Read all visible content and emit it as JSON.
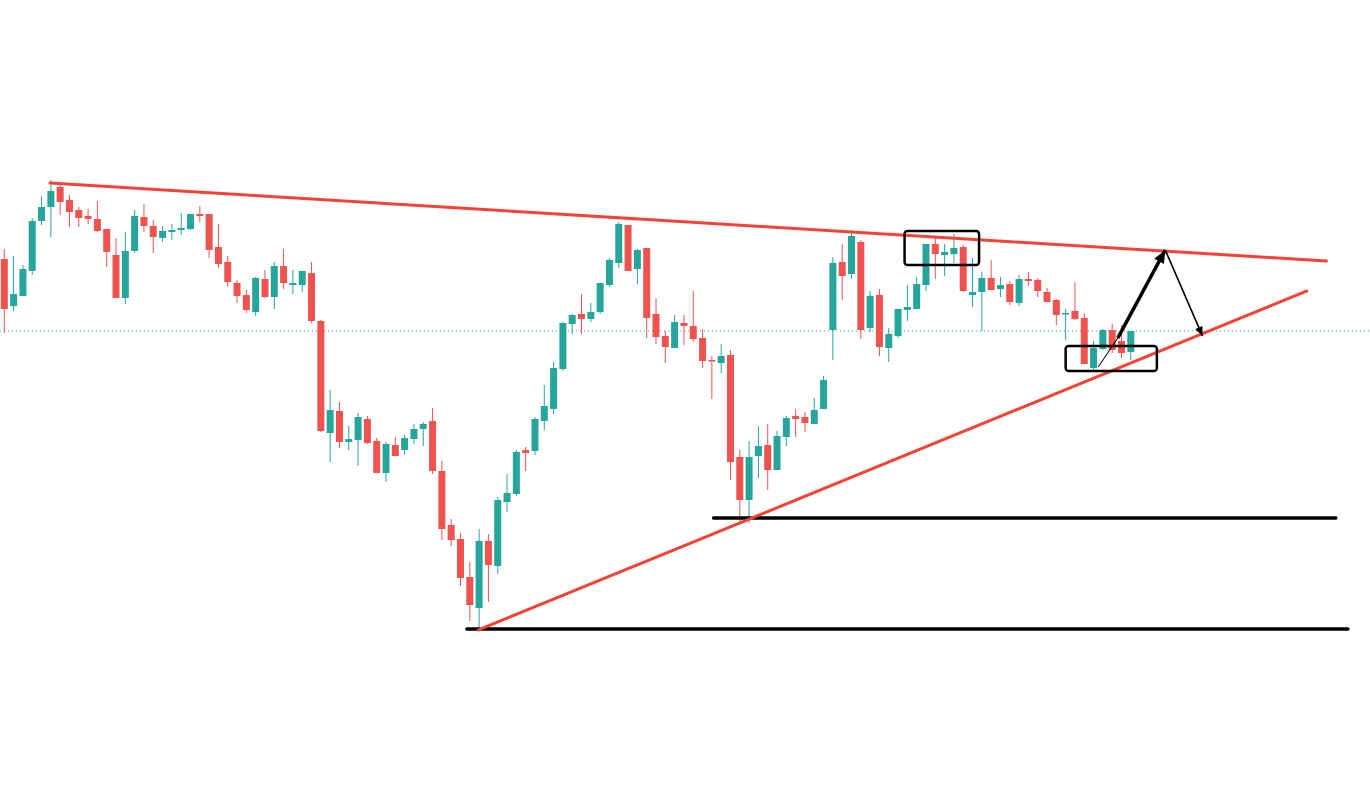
{
  "chart_data": {
    "type": "candlestick",
    "title": "",
    "xlabel": "",
    "ylabel": "",
    "grid": false,
    "ylim": [
      11,
      800
    ],
    "colors": {
      "up": "#26a69a",
      "down": "#ef5350",
      "trendline": "#f44336",
      "support": "#000000",
      "last_price_line": "#26a69a"
    },
    "candles_ohlc": [
      [
        541,
        551,
        467,
        491
      ],
      [
        494,
        544,
        489,
        506
      ],
      [
        504,
        535,
        504,
        531
      ],
      [
        529,
        582,
        525,
        579
      ],
      [
        579,
        604,
        575,
        593
      ],
      [
        593,
        620,
        563,
        609
      ],
      [
        613,
        617,
        585,
        598
      ],
      [
        600,
        605,
        573,
        588
      ],
      [
        590,
        593,
        573,
        582
      ],
      [
        584,
        591,
        576,
        581
      ],
      [
        581,
        599,
        568,
        569
      ],
      [
        571,
        571,
        533,
        548
      ],
      [
        545,
        562,
        502,
        502
      ],
      [
        502,
        568,
        496,
        549
      ],
      [
        549,
        590,
        547,
        584
      ],
      [
        583,
        596,
        568,
        574
      ],
      [
        574,
        580,
        547,
        563
      ],
      [
        562,
        574,
        558,
        569
      ],
      [
        568,
        576,
        560,
        570
      ],
      [
        570,
        587,
        565,
        572
      ],
      [
        571,
        586,
        570,
        586
      ],
      [
        586,
        594,
        578,
        584
      ],
      [
        586,
        586,
        542,
        550
      ],
      [
        553,
        576,
        532,
        536
      ],
      [
        538,
        544,
        513,
        518
      ],
      [
        517,
        520,
        497,
        504
      ],
      [
        505,
        510,
        487,
        490
      ],
      [
        488,
        523,
        484,
        522
      ],
      [
        521,
        530,
        502,
        503
      ],
      [
        503,
        538,
        491,
        534
      ],
      [
        534,
        551,
        511,
        517
      ],
      [
        515,
        530,
        506,
        517
      ],
      [
        515,
        529,
        508,
        529
      ],
      [
        527,
        538,
        477,
        479
      ],
      [
        479,
        480,
        368,
        369
      ],
      [
        367,
        410,
        338,
        390
      ],
      [
        389,
        398,
        352,
        358
      ],
      [
        358,
        374,
        350,
        361
      ],
      [
        360,
        387,
        334,
        383
      ],
      [
        381,
        384,
        356,
        357
      ],
      [
        359,
        362,
        327,
        327
      ],
      [
        327,
        358,
        318,
        356
      ],
      [
        355,
        363,
        344,
        344
      ],
      [
        350,
        365,
        345,
        362
      ],
      [
        361,
        376,
        356,
        371
      ],
      [
        371,
        378,
        354,
        376
      ],
      [
        379,
        392,
        326,
        329
      ],
      [
        329,
        339,
        260,
        271
      ],
      [
        275,
        281,
        254,
        260
      ],
      [
        261,
        267,
        214,
        222
      ],
      [
        223,
        238,
        179,
        195
      ],
      [
        192,
        271,
        170,
        259
      ],
      [
        259,
        266,
        198,
        235
      ],
      [
        234,
        303,
        226,
        300
      ],
      [
        298,
        326,
        288,
        307
      ],
      [
        306,
        350,
        304,
        348
      ],
      [
        350,
        353,
        329,
        347
      ],
      [
        349,
        383,
        345,
        381
      ],
      [
        379,
        415,
        370,
        394
      ],
      [
        391,
        438,
        386,
        432
      ],
      [
        431,
        478,
        429,
        477
      ],
      [
        476,
        486,
        466,
        485
      ],
      [
        486,
        506,
        466,
        481
      ],
      [
        481,
        497,
        478,
        488
      ],
      [
        488,
        517,
        486,
        517
      ],
      [
        515,
        542,
        513,
        540
      ],
      [
        537,
        578,
        532,
        576
      ],
      [
        575,
        575,
        529,
        529
      ],
      [
        531,
        551,
        516,
        550
      ],
      [
        552,
        552,
        462,
        482
      ],
      [
        486,
        502,
        456,
        463
      ],
      [
        464,
        469,
        437,
        453
      ],
      [
        452,
        485,
        452,
        478
      ],
      [
        477,
        485,
        455,
        474
      ],
      [
        474,
        509,
        458,
        461
      ],
      [
        462,
        471,
        432,
        439
      ],
      [
        440,
        444,
        401,
        439
      ],
      [
        437,
        456,
        427,
        444
      ],
      [
        445,
        450,
        320,
        338
      ],
      [
        343,
        350,
        278,
        300
      ],
      [
        300,
        359,
        277,
        343
      ],
      [
        344,
        374,
        322,
        354
      ],
      [
        355,
        376,
        310,
        330
      ],
      [
        330,
        369,
        330,
        364
      ],
      [
        363,
        384,
        354,
        382
      ],
      [
        384,
        391,
        363,
        381
      ],
      [
        383,
        388,
        368,
        377
      ],
      [
        376,
        402,
        376,
        390
      ],
      [
        391,
        424,
        391,
        420
      ],
      [
        470,
        543,
        440,
        537
      ],
      [
        538,
        556,
        500,
        524
      ],
      [
        526,
        570,
        521,
        564
      ],
      [
        558,
        560,
        461,
        470
      ],
      [
        472,
        509,
        468,
        504
      ],
      [
        505,
        511,
        444,
        453
      ],
      [
        452,
        472,
        438,
        466
      ],
      [
        464,
        491,
        462,
        491
      ],
      [
        490,
        515,
        479,
        493
      ],
      [
        491,
        523,
        491,
        516
      ],
      [
        515,
        556,
        509,
        556
      ],
      [
        556,
        563,
        521,
        546
      ],
      [
        545,
        556,
        524,
        548
      ],
      [
        546,
        566,
        537,
        552
      ],
      [
        553,
        555,
        508,
        509
      ],
      [
        505,
        542,
        493,
        508
      ],
      [
        508,
        528,
        469,
        522
      ],
      [
        522,
        540,
        510,
        510
      ],
      [
        511,
        523,
        503,
        515
      ],
      [
        516,
        519,
        495,
        498
      ],
      [
        497,
        525,
        494,
        521
      ],
      [
        521,
        528,
        514,
        519
      ],
      [
        520,
        522,
        503,
        509
      ],
      [
        508,
        512,
        498,
        498
      ],
      [
        500,
        501,
        475,
        485
      ],
      [
        486,
        491,
        460,
        487
      ],
      [
        489,
        518,
        480,
        481
      ],
      [
        482,
        487,
        436,
        436
      ],
      [
        432,
        459,
        430,
        452
      ],
      [
        451,
        471,
        450,
        470
      ],
      [
        470,
        476,
        447,
        450
      ],
      [
        459,
        475,
        442,
        447
      ],
      [
        448,
        469,
        440,
        469
      ]
    ],
    "last_price": 469,
    "drawings": {
      "trendlines": [
        {
          "name": "upper-resistance-trendline",
          "from": [
            4.91,
            617
          ],
          "to": [
            142.0,
            539
          ]
        },
        {
          "name": "lower-support-trendline",
          "from": [
            50.9,
            170
          ],
          "to": [
            139.9,
            509
          ]
        }
      ],
      "horizontal_lines": [
        {
          "name": "support-level-upper",
          "from_x": 76.2,
          "to_x": 143.0,
          "price": 282
        },
        {
          "name": "support-level-lower",
          "from_x": 49.7,
          "to_x": 144.3,
          "price": 171
        }
      ],
      "boxes": [
        {
          "name": "highlight-box-top",
          "x": [
            96.7,
            104.7
          ],
          "price": [
            535,
            569
          ]
        },
        {
          "name": "highlight-box-bottom",
          "x": [
            114.0,
            123.8
          ],
          "price": [
            429,
            454
          ]
        }
      ],
      "arrows": [
        {
          "name": "projection-arrow-up",
          "from": [
            117.5,
            433
          ],
          "bend": [
            119.6,
            462
          ],
          "to": [
            124.7,
            550
          ]
        },
        {
          "name": "projection-arrow-down",
          "from": [
            124.7,
            550
          ],
          "to": [
            128.7,
            464
          ]
        }
      ]
    }
  }
}
